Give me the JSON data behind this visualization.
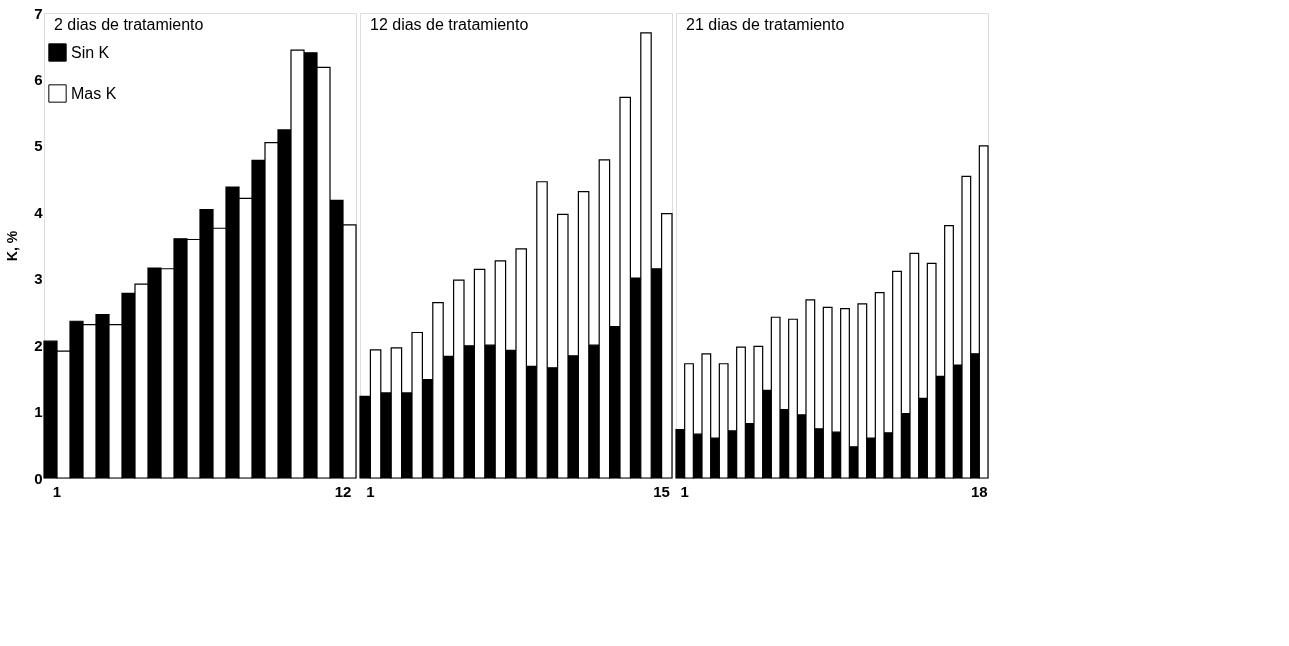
{
  "chart_data": [
    {
      "type": "bar",
      "title": "2 dias de tratamiento",
      "ylabel": "K, %",
      "legend": "top left",
      "grid": false,
      "categories": [
        "1",
        null,
        null,
        null,
        null,
        null,
        null,
        null,
        null,
        null,
        null,
        "12"
      ],
      "ylim": [
        0,
        7
      ],
      "yticks": [
        0,
        1,
        2,
        3,
        4,
        5,
        6,
        7
      ],
      "series": [
        {
          "name": "Sin K",
          "color": "#000000",
          "values": [
            2.06,
            2.36,
            2.46,
            2.78,
            3.16,
            3.6,
            4.04,
            4.38,
            4.78,
            5.24,
            6.4,
            4.18
          ]
        },
        {
          "name": "Mas K",
          "color": "#ffffff",
          "values": [
            1.91,
            2.31,
            2.31,
            2.92,
            3.15,
            3.59,
            3.76,
            4.21,
            5.05,
            6.44,
            6.18,
            3.81
          ]
        }
      ]
    },
    {
      "type": "bar",
      "title": "12 dias de tratamiento",
      "grid": false,
      "tick_labels": "x",
      "categories": [
        "1",
        null,
        null,
        null,
        null,
        null,
        null,
        null,
        null,
        null,
        null,
        null,
        null,
        null,
        "15"
      ],
      "ylim": [
        0,
        7
      ],
      "yticks": [
        0,
        1,
        2,
        3,
        4,
        5,
        6,
        7
      ],
      "series": [
        {
          "color": "#000000",
          "values": [
            1.23,
            1.28,
            1.28,
            1.48,
            1.83,
            1.99,
            2.0,
            1.92,
            1.68,
            1.66,
            1.84,
            2.0,
            2.28,
            3.01,
            3.15
          ]
        },
        {
          "color": "#ffffff",
          "values": [
            1.93,
            1.96,
            2.19,
            2.64,
            2.98,
            3.14,
            3.27,
            3.45,
            4.46,
            3.97,
            4.31,
            4.79,
            5.73,
            6.7,
            3.98
          ]
        }
      ]
    },
    {
      "type": "bar",
      "title": "21 dias de tratamiento",
      "grid": false,
      "tick_labels": "x",
      "categories": [
        "1",
        null,
        null,
        null,
        null,
        null,
        null,
        null,
        null,
        null,
        null,
        null,
        null,
        null,
        null,
        null,
        null,
        "18"
      ],
      "ylim": [
        0,
        7
      ],
      "yticks": [
        0,
        1,
        2,
        3,
        4,
        5,
        6,
        7
      ],
      "series": [
        {
          "color": "#000000",
          "values": [
            0.73,
            0.66,
            0.6,
            0.71,
            0.82,
            1.32,
            1.03,
            0.95,
            0.74,
            0.69,
            0.47,
            0.6,
            0.68,
            0.97,
            1.2,
            1.53,
            1.7,
            1.87
          ]
        },
        {
          "color": "#ffffff",
          "values": [
            1.72,
            1.87,
            1.72,
            1.97,
            1.98,
            2.42,
            2.39,
            2.68,
            2.57,
            2.55,
            2.62,
            2.79,
            3.11,
            3.38,
            3.23,
            3.8,
            4.54,
            5.0
          ]
        }
      ]
    }
  ]
}
